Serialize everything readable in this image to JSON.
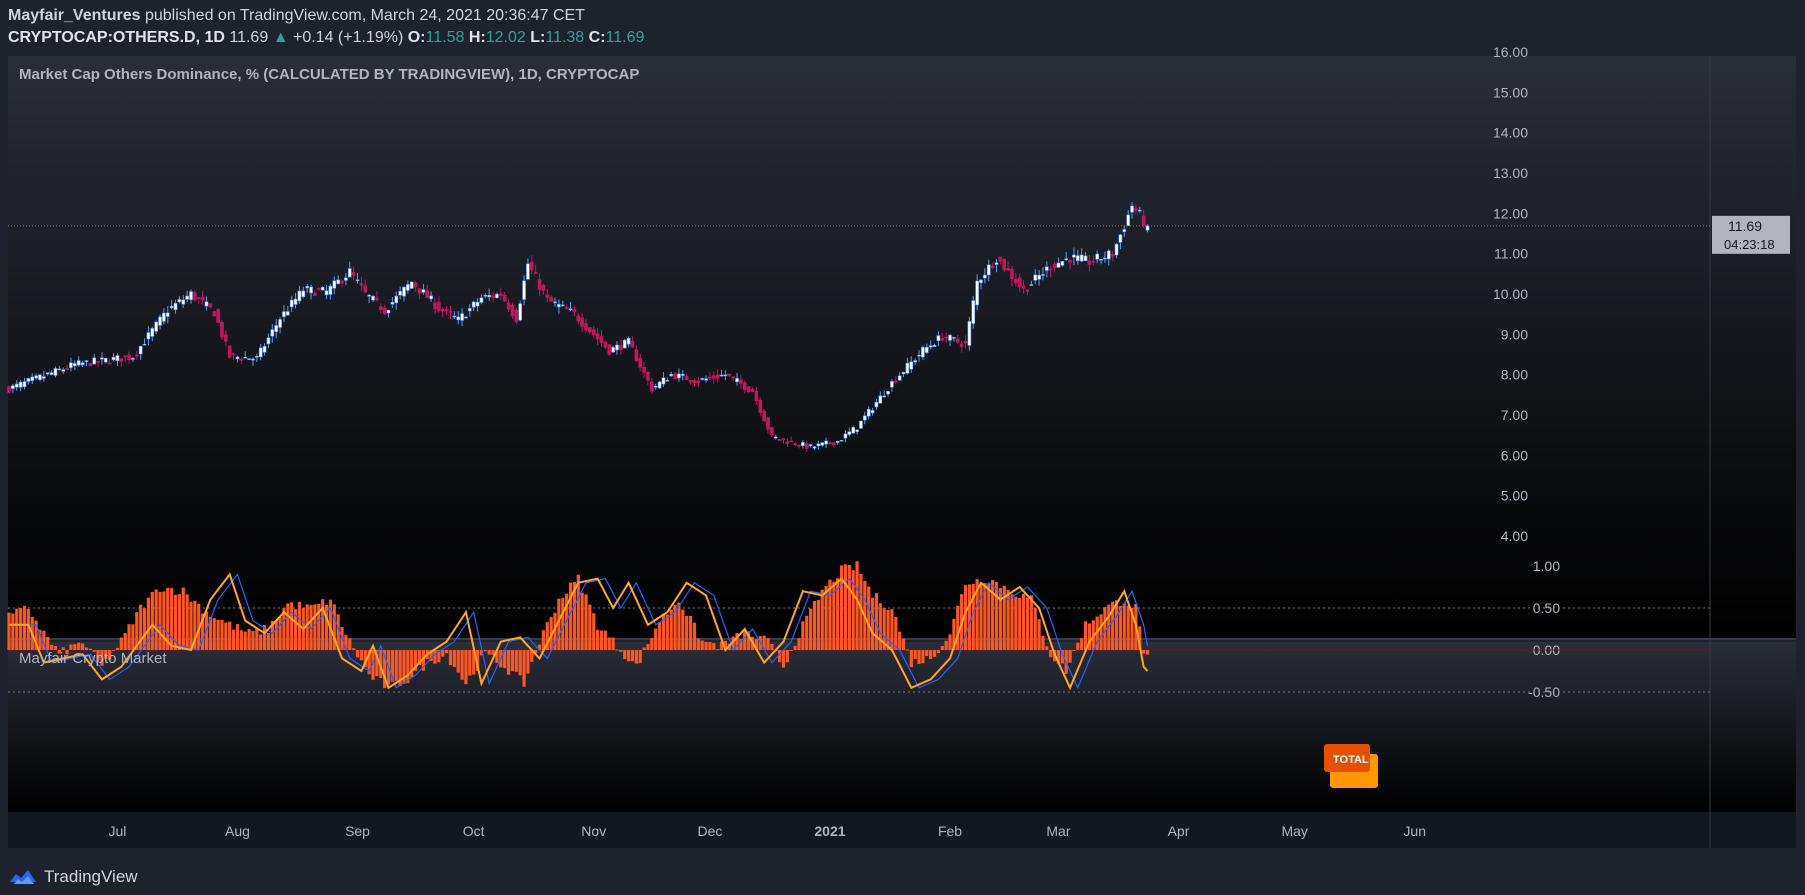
{
  "header": {
    "author": "Mayfair_Ventures",
    "published_text": "published on TradingView.com, March 24, 2021 20:36:47 CET"
  },
  "symbol_bar": {
    "symbol": "CRYPTOCAP:OTHERS.D, 1D",
    "last": "11.69",
    "arrow": "▲",
    "change": "+0.14 (+1.19%)",
    "o_label": "O:",
    "o_value": "11.58",
    "h_label": "H:",
    "h_value": "12.02",
    "l_label": "L:",
    "l_value": "11.38",
    "c_label": "C:",
    "c_value": "11.69"
  },
  "footer": {
    "brand": "TradingView",
    "logo_icon": "tradingview-logo-icon"
  },
  "colors": {
    "up": "#ffffff",
    "up_border": "#5b9cf6",
    "down": "#c2185b",
    "hist": "#ff5722",
    "line_orange": "#ffa726",
    "line_blue": "#2962ff",
    "bg_top": "#1e222d",
    "bg_bottom": "#000000"
  },
  "chart_data": [
    {
      "type": "candlestick",
      "title": "Market Cap Others Dominance, % (CALCULATED BY TRADINGVIEW), 1D, CRYPTOCAP",
      "ylim": [
        3.6,
        16.1
      ],
      "y_ticks": [
        "16.00",
        "15.00",
        "14.00",
        "13.00",
        "12.00",
        "11.00",
        "10.00",
        "9.00",
        "8.00",
        "7.00",
        "6.00",
        "5.00",
        "4.00"
      ],
      "x_ticks": [
        "Jul",
        "Aug",
        "Sep",
        "Oct",
        "Nov",
        "Dec",
        "2021",
        "Feb",
        "Mar",
        "Apr",
        "May",
        "Jun"
      ],
      "x_tick_dates": [
        "2020-07-01",
        "2020-08-01",
        "2020-09-01",
        "2020-10-01",
        "2020-11-01",
        "2020-12-01",
        "2021-01-01",
        "2021-02-01",
        "2021-03-01",
        "2021-04-01",
        "2021-05-01",
        "2021-06-01"
      ],
      "start_date": "2020-06-03",
      "last_price": "11.69",
      "countdown": "04:23:18",
      "close_anchors": [
        [
          "2020-06-03",
          7.65
        ],
        [
          "2020-06-20",
          8.25
        ],
        [
          "2020-07-05",
          8.45
        ],
        [
          "2020-07-14",
          9.6
        ],
        [
          "2020-07-20",
          10.0
        ],
        [
          "2020-07-26",
          9.55
        ],
        [
          "2020-07-30",
          8.45
        ],
        [
          "2020-08-06",
          8.4
        ],
        [
          "2020-08-12",
          9.4
        ],
        [
          "2020-08-18",
          10.1
        ],
        [
          "2020-08-24",
          10.05
        ],
        [
          "2020-08-30",
          10.55
        ],
        [
          "2020-09-03",
          10.0
        ],
        [
          "2020-09-08",
          9.6
        ],
        [
          "2020-09-15",
          10.3
        ],
        [
          "2020-09-22",
          9.65
        ],
        [
          "2020-09-27",
          9.35
        ],
        [
          "2020-10-03",
          9.9
        ],
        [
          "2020-10-08",
          10.0
        ],
        [
          "2020-10-12",
          9.4
        ],
        [
          "2020-10-15",
          10.75
        ],
        [
          "2020-10-20",
          9.85
        ],
        [
          "2020-10-27",
          9.5
        ],
        [
          "2020-11-05",
          8.6
        ],
        [
          "2020-11-10",
          8.8
        ],
        [
          "2020-11-16",
          7.65
        ],
        [
          "2020-11-21",
          8.0
        ],
        [
          "2020-11-28",
          7.85
        ],
        [
          "2020-12-05",
          8.0
        ],
        [
          "2020-12-12",
          7.6
        ],
        [
          "2020-12-17",
          6.45
        ],
        [
          "2020-12-23",
          6.3
        ],
        [
          "2020-12-27",
          6.2
        ],
        [
          "2021-01-03",
          6.35
        ],
        [
          "2021-01-08",
          6.7
        ],
        [
          "2021-01-17",
          7.8
        ],
        [
          "2021-01-25",
          8.6
        ],
        [
          "2021-01-30",
          8.95
        ],
        [
          "2021-02-05",
          8.75
        ],
        [
          "2021-02-08",
          10.3
        ],
        [
          "2021-02-13",
          10.9
        ],
        [
          "2021-02-20",
          10.1
        ],
        [
          "2021-02-27",
          10.7
        ],
        [
          "2021-03-04",
          10.9
        ],
        [
          "2021-03-09",
          10.8
        ],
        [
          "2021-03-15",
          11.0
        ],
        [
          "2021-03-18",
          11.7
        ],
        [
          "2021-03-20",
          12.2
        ],
        [
          "2021-03-24",
          11.69
        ]
      ],
      "volatility_pct": 2.0
    },
    {
      "type": "oscillator",
      "title": "Mayfair Crypto Market",
      "ylim": [
        -0.68,
        1.1
      ],
      "y_ticks": [
        "1.00",
        "0.50",
        "0.00",
        "-0.50"
      ],
      "levels": [
        0.5,
        -0.5
      ],
      "label": "TOTAL",
      "hist_anchors": [
        [
          "2020-06-03",
          0.4
        ],
        [
          "2020-06-08",
          0.5
        ],
        [
          "2020-06-12",
          0.2
        ],
        [
          "2020-06-16",
          -0.05
        ],
        [
          "2020-06-22",
          0.1
        ],
        [
          "2020-06-27",
          -0.2
        ],
        [
          "2020-07-02",
          0.1
        ],
        [
          "2020-07-07",
          0.5
        ],
        [
          "2020-07-12",
          0.75
        ],
        [
          "2020-07-18",
          0.7
        ],
        [
          "2020-07-24",
          0.45
        ],
        [
          "2020-07-30",
          0.3
        ],
        [
          "2020-08-04",
          0.2
        ],
        [
          "2020-08-09",
          0.25
        ],
        [
          "2020-08-14",
          0.55
        ],
        [
          "2020-08-20",
          0.5
        ],
        [
          "2020-08-25",
          0.6
        ],
        [
          "2020-08-30",
          0.1
        ],
        [
          "2020-09-04",
          -0.3
        ],
        [
          "2020-09-09",
          -0.45
        ],
        [
          "2020-09-14",
          -0.35
        ],
        [
          "2020-09-19",
          -0.15
        ],
        [
          "2020-09-24",
          -0.05
        ],
        [
          "2020-09-29",
          -0.4
        ],
        [
          "2020-10-04",
          -0.05
        ],
        [
          "2020-10-09",
          -0.2
        ],
        [
          "2020-10-14",
          -0.4
        ],
        [
          "2020-10-18",
          0.1
        ],
        [
          "2020-10-23",
          0.6
        ],
        [
          "2020-10-28",
          0.85
        ],
        [
          "2020-11-02",
          0.3
        ],
        [
          "2020-11-07",
          0.05
        ],
        [
          "2020-11-12",
          -0.2
        ],
        [
          "2020-11-18",
          0.35
        ],
        [
          "2020-11-23",
          0.6
        ],
        [
          "2020-11-29",
          0.1
        ],
        [
          "2020-12-04",
          0.05
        ],
        [
          "2020-12-10",
          0.2
        ],
        [
          "2020-12-16",
          0.1
        ],
        [
          "2020-12-20",
          -0.2
        ],
        [
          "2020-12-24",
          0.2
        ],
        [
          "2020-12-30",
          0.7
        ],
        [
          "2021-01-04",
          0.95
        ],
        [
          "2021-01-08",
          1.0
        ],
        [
          "2021-01-12",
          0.65
        ],
        [
          "2021-01-17",
          0.5
        ],
        [
          "2021-01-22",
          -0.15
        ],
        [
          "2021-01-27",
          -0.1
        ],
        [
          "2021-02-01",
          0.2
        ],
        [
          "2021-02-05",
          0.8
        ],
        [
          "2021-02-11",
          0.85
        ],
        [
          "2021-02-17",
          0.7
        ],
        [
          "2021-02-22",
          0.6
        ],
        [
          "2021-02-27",
          -0.05
        ],
        [
          "2021-03-03",
          -0.25
        ],
        [
          "2021-03-08",
          0.3
        ],
        [
          "2021-03-13",
          0.5
        ],
        [
          "2021-03-18",
          0.6
        ],
        [
          "2021-03-21",
          0.5
        ],
        [
          "2021-03-23",
          0.0
        ],
        [
          "2021-03-24",
          -0.1
        ]
      ],
      "orange_anchors": [
        [
          "2020-06-03",
          0.3
        ],
        [
          "2020-06-08",
          0.3
        ],
        [
          "2020-06-12",
          -0.15
        ],
        [
          "2020-06-17",
          -0.1
        ],
        [
          "2020-06-22",
          -0.05
        ],
        [
          "2020-06-27",
          -0.35
        ],
        [
          "2020-07-02",
          -0.2
        ],
        [
          "2020-07-06",
          0.05
        ],
        [
          "2020-07-10",
          0.3
        ],
        [
          "2020-07-15",
          0.05
        ],
        [
          "2020-07-20",
          0.0
        ],
        [
          "2020-07-25",
          0.6
        ],
        [
          "2020-07-30",
          0.9
        ],
        [
          "2020-08-03",
          0.35
        ],
        [
          "2020-08-08",
          0.2
        ],
        [
          "2020-08-13",
          0.45
        ],
        [
          "2020-08-18",
          0.25
        ],
        [
          "2020-08-23",
          0.5
        ],
        [
          "2020-08-28",
          -0.1
        ],
        [
          "2020-09-02",
          -0.25
        ],
        [
          "2020-09-05",
          0.05
        ],
        [
          "2020-09-09",
          -0.45
        ],
        [
          "2020-09-14",
          -0.3
        ],
        [
          "2020-09-19",
          -0.05
        ],
        [
          "2020-09-24",
          0.1
        ],
        [
          "2020-09-29",
          0.45
        ],
        [
          "2020-10-03",
          -0.4
        ],
        [
          "2020-10-08",
          0.1
        ],
        [
          "2020-10-13",
          0.15
        ],
        [
          "2020-10-18",
          -0.1
        ],
        [
          "2020-10-23",
          0.35
        ],
        [
          "2020-10-28",
          0.8
        ],
        [
          "2020-11-02",
          0.85
        ],
        [
          "2020-11-06",
          0.5
        ],
        [
          "2020-11-10",
          0.8
        ],
        [
          "2020-11-15",
          0.3
        ],
        [
          "2020-11-20",
          0.45
        ],
        [
          "2020-11-25",
          0.8
        ],
        [
          "2020-11-30",
          0.65
        ],
        [
          "2020-12-05",
          0.0
        ],
        [
          "2020-12-10",
          0.25
        ],
        [
          "2020-12-15",
          -0.15
        ],
        [
          "2020-12-20",
          0.1
        ],
        [
          "2020-12-25",
          0.7
        ],
        [
          "2020-12-30",
          0.65
        ],
        [
          "2021-01-04",
          0.85
        ],
        [
          "2021-01-08",
          0.6
        ],
        [
          "2021-01-12",
          0.2
        ],
        [
          "2021-01-17",
          0.0
        ],
        [
          "2021-01-22",
          -0.45
        ],
        [
          "2021-01-27",
          -0.35
        ],
        [
          "2021-02-01",
          -0.1
        ],
        [
          "2021-02-05",
          0.45
        ],
        [
          "2021-02-09",
          0.8
        ],
        [
          "2021-02-14",
          0.6
        ],
        [
          "2021-02-19",
          0.75
        ],
        [
          "2021-02-24",
          0.5
        ],
        [
          "2021-02-28",
          -0.05
        ],
        [
          "2021-03-04",
          -0.45
        ],
        [
          "2021-03-09",
          0.1
        ],
        [
          "2021-03-14",
          0.4
        ],
        [
          "2021-03-18",
          0.7
        ],
        [
          "2021-03-21",
          0.3
        ],
        [
          "2021-03-23",
          -0.2
        ],
        [
          "2021-03-24",
          -0.25
        ]
      ]
    }
  ]
}
